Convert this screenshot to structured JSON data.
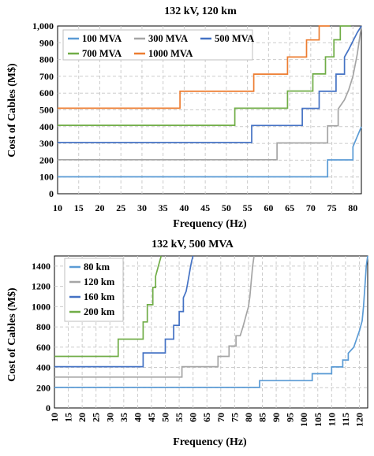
{
  "chart_data": [
    {
      "type": "line",
      "title": "132 kV, 120 km",
      "xlabel": "Frequency (Hz)",
      "ylabel": "Cost of Cables (M$)",
      "xlim": [
        10,
        82
      ],
      "ylim": [
        0,
        1000
      ],
      "xticks": [
        "10",
        "15",
        "20",
        "25",
        "30",
        "35",
        "40",
        "45",
        "50",
        "55",
        "60",
        "65",
        "70",
        "75",
        "80"
      ],
      "yticks": [
        "0",
        "100",
        "200",
        "300",
        "400",
        "500",
        "600",
        "700",
        "800",
        "900",
        "1,000"
      ],
      "grid": true,
      "legend": "top-left",
      "series": [
        {
          "name": "100 MVA",
          "color": "#5b9bd5",
          "x": [
            10,
            74,
            74,
            80,
            80,
            82
          ],
          "y": [
            101,
            101,
            202,
            202,
            280,
            400
          ]
        },
        {
          "name": "300 MVA",
          "color": "#a5a5a5",
          "x": [
            10,
            62,
            62,
            74,
            74,
            76.5,
            76.5,
            78,
            79,
            80,
            81,
            82
          ],
          "y": [
            203,
            203,
            303,
            303,
            405,
            405,
            505,
            560,
            620,
            700,
            830,
            1000
          ]
        },
        {
          "name": "500 MVA",
          "color": "#4472c4",
          "x": [
            10,
            56,
            56,
            68,
            68,
            72,
            72,
            76,
            76,
            78,
            78,
            79,
            80,
            81,
            82
          ],
          "y": [
            305,
            305,
            407,
            407,
            509,
            509,
            611,
            611,
            713,
            713,
            815,
            860,
            910,
            960,
            1000
          ]
        },
        {
          "name": "700 MVA",
          "color": "#70ad47",
          "x": [
            10,
            52,
            52,
            64.5,
            64.5,
            70.5,
            70.5,
            73.5,
            73.5,
            75.5,
            75.5,
            77,
            77,
            78,
            78,
            79.5
          ],
          "y": [
            408,
            408,
            510,
            510,
            612,
            612,
            714,
            714,
            816,
            816,
            918,
            918,
            1000,
            1000,
            1000,
            1000
          ]
        },
        {
          "name": "1000 MVA",
          "color": "#ed7d31",
          "x": [
            10,
            39,
            39,
            56.5,
            56.5,
            64.5,
            64.5,
            69,
            69,
            72,
            72,
            73.5,
            73.5,
            74.5
          ],
          "y": [
            510,
            510,
            611,
            611,
            713,
            713,
            815,
            815,
            917,
            917,
            1000,
            1000,
            1000,
            1000
          ]
        }
      ]
    },
    {
      "type": "line",
      "title": "132 kV, 500 MVA",
      "xlabel": "Frequency (Hz)",
      "ylabel": "Cost of Cables (M$)",
      "xlim": [
        10,
        123
      ],
      "ylim": [
        0,
        1500
      ],
      "xticks": [
        "10",
        "15",
        "20",
        "25",
        "30",
        "35",
        "40",
        "45",
        "50",
        "55",
        "60",
        "65",
        "70",
        "75",
        "80",
        "85",
        "90",
        "95",
        "100",
        "105",
        "110",
        "115",
        "120"
      ],
      "yticks": [
        "0",
        "200",
        "400",
        "600",
        "800",
        "1000",
        "1200",
        "1400"
      ],
      "grid": true,
      "legend": "top-left",
      "series": [
        {
          "name": "80 km",
          "color": "#5b9bd5",
          "x": [
            10,
            84,
            84,
            103,
            103,
            110,
            110,
            114,
            114,
            116,
            116,
            118,
            119,
            120,
            121,
            121.5,
            122,
            122.5,
            123
          ],
          "y": [
            203,
            203,
            270,
            270,
            338,
            338,
            405,
            405,
            473,
            473,
            540,
            600,
            680,
            760,
            860,
            1000,
            1200,
            1400,
            1500
          ]
        },
        {
          "name": "120 km",
          "color": "#a5a5a5",
          "x": [
            10,
            56,
            56,
            69,
            69,
            73,
            73,
            75.5,
            75.5,
            77,
            78,
            79,
            80,
            80.5,
            81,
            81.5,
            82
          ],
          "y": [
            305,
            305,
            407,
            407,
            509,
            509,
            611,
            611,
            713,
            713,
            800,
            900,
            1000,
            1100,
            1250,
            1400,
            1500
          ]
        },
        {
          "name": "160 km",
          "color": "#4472c4",
          "x": [
            10,
            42,
            42,
            50,
            50,
            53,
            53,
            55,
            55,
            56.5,
            56.5,
            57.5,
            58,
            58.5,
            59,
            59.5,
            60
          ],
          "y": [
            407,
            407,
            543,
            543,
            679,
            679,
            815,
            815,
            951,
            951,
            1087,
            1150,
            1220,
            1300,
            1380,
            1450,
            1500
          ]
        },
        {
          "name": "200 km",
          "color": "#70ad47",
          "x": [
            10,
            33,
            33,
            42,
            42,
            43.5,
            43.5,
            45.5,
            45.5,
            46.5,
            46.5,
            47.5,
            48,
            48.5
          ],
          "y": [
            509,
            509,
            679,
            679,
            849,
            849,
            1019,
            1019,
            1189,
            1189,
            1300,
            1400,
            1450,
            1500
          ]
        }
      ]
    }
  ]
}
